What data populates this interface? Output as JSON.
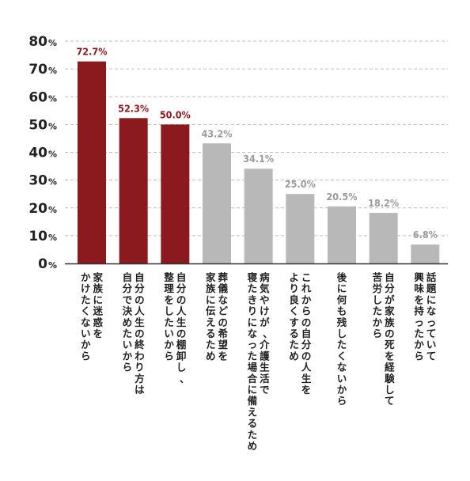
{
  "chart_data": {
    "type": "bar",
    "y_ticks": [
      "0",
      "10",
      "20",
      "30",
      "40",
      "50",
      "60",
      "70",
      "80"
    ],
    "y_unit": "%",
    "ylim": [
      0,
      80
    ],
    "grid": "dashed-horizontal",
    "highlight_color": "#8b1a1f",
    "base_color": "#b8b8b8",
    "value_text_color_highlight": "#8b1a1f",
    "value_text_color_base": "#9a9a9a",
    "categories": [
      {
        "lines": [
          "家族に迷惑を",
          "かけたくないから"
        ],
        "value": 72.7,
        "label": "72.7%",
        "highlight": true
      },
      {
        "lines": [
          "自分の人生の終わり方は",
          "自分で決めたいから"
        ],
        "value": 52.3,
        "label": "52.3%",
        "highlight": true
      },
      {
        "lines": [
          "自分の人生の棚卸し、",
          "整理をしたいから"
        ],
        "value": 50.0,
        "label": "50.0%",
        "highlight": true
      },
      {
        "lines": [
          "葬儀などの希望を",
          "家族に伝えるため"
        ],
        "value": 43.2,
        "label": "43.2%",
        "highlight": false
      },
      {
        "lines": [
          "病気やけが、介護生活で",
          "寝たきりになった場合に備えるため"
        ],
        "value": 34.1,
        "label": "34.1%",
        "highlight": false
      },
      {
        "lines": [
          "これからの自分の人生を",
          "より良くするため"
        ],
        "value": 25.0,
        "label": "25.0%",
        "highlight": false
      },
      {
        "lines": [
          "後に何も残したくないから"
        ],
        "value": 20.5,
        "label": "20.5%",
        "highlight": false
      },
      {
        "lines": [
          "自分が家族の死を経験して",
          "苦労したから"
        ],
        "value": 18.2,
        "label": "18.2%",
        "highlight": false
      },
      {
        "lines": [
          "話題になっていて",
          "興味を持ったから"
        ],
        "value": 6.8,
        "label": "6.8%",
        "highlight": false
      }
    ]
  }
}
